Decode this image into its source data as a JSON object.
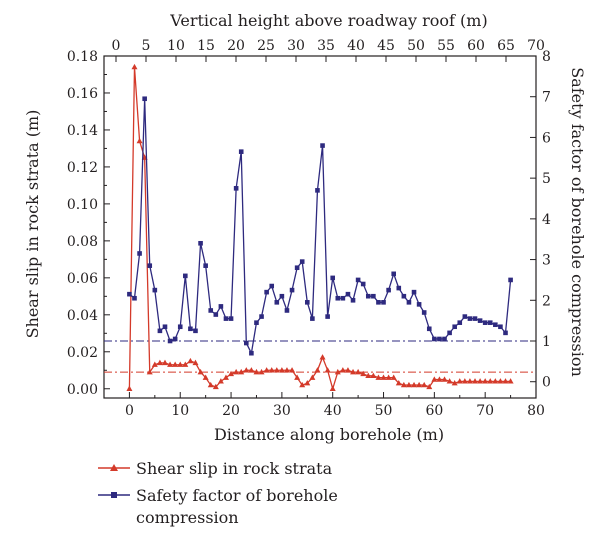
{
  "chart_data": {
    "type": "line",
    "xlabel": "Distance along borehole (m)",
    "x2label": "Vertical height above roadway roof (m)",
    "ylabel": "Shear slip in rock strata (m)",
    "y2label": "Safety factor of borehole compression",
    "xlim": [
      -5,
      80
    ],
    "x2lim": [
      -2,
      70
    ],
    "ylim": [
      -0.005,
      0.18
    ],
    "y2lim": [
      -0.4,
      8
    ],
    "xticks": [
      0,
      10,
      20,
      30,
      40,
      50,
      60,
      70,
      80
    ],
    "x2ticks": [
      0,
      5,
      10,
      15,
      20,
      25,
      30,
      35,
      40,
      45,
      50,
      55,
      60,
      65,
      70
    ],
    "yticks": [
      0.0,
      0.02,
      0.04,
      0.06,
      0.08,
      0.1,
      0.12,
      0.14,
      0.16,
      0.18
    ],
    "y2ticks": [
      0,
      1,
      2,
      3,
      4,
      5,
      6,
      7,
      8
    ],
    "grid": false,
    "legend_position": "bottom-left",
    "reference_lines": [
      {
        "axis": "y2",
        "value": 1.0,
        "color": "#2e2a7f",
        "style": "dash-dot"
      },
      {
        "axis": "y",
        "value": 0.009,
        "color": "#d43a2a",
        "style": "dash-dot"
      }
    ],
    "series": [
      {
        "name": "Shear slip in rock strata",
        "axis": "y",
        "color": "#d43a2a",
        "marker": "triangle",
        "x": [
          0,
          1,
          2,
          3,
          4,
          5,
          6,
          7,
          8,
          9,
          10,
          11,
          12,
          13,
          14,
          15,
          16,
          17,
          18,
          19,
          20,
          21,
          22,
          23,
          24,
          25,
          26,
          27,
          28,
          29,
          30,
          31,
          32,
          33,
          34,
          35,
          36,
          37,
          38,
          39,
          40,
          41,
          42,
          43,
          44,
          45,
          46,
          47,
          48,
          49,
          50,
          51,
          52,
          53,
          54,
          55,
          56,
          57,
          58,
          59,
          60,
          61,
          62,
          63,
          64,
          65,
          66,
          67,
          68,
          69,
          70,
          71,
          72,
          73,
          74,
          75
        ],
        "values": [
          0.0,
          0.174,
          0.134,
          0.125,
          0.009,
          0.013,
          0.014,
          0.014,
          0.013,
          0.013,
          0.013,
          0.013,
          0.015,
          0.014,
          0.009,
          0.006,
          0.002,
          0.001,
          0.004,
          0.006,
          0.008,
          0.009,
          0.009,
          0.01,
          0.01,
          0.009,
          0.009,
          0.01,
          0.01,
          0.01,
          0.01,
          0.01,
          0.01,
          0.006,
          0.002,
          0.003,
          0.006,
          0.01,
          0.017,
          0.01,
          0.0,
          0.009,
          0.01,
          0.01,
          0.009,
          0.009,
          0.008,
          0.007,
          0.007,
          0.006,
          0.006,
          0.006,
          0.006,
          0.003,
          0.002,
          0.002,
          0.002,
          0.002,
          0.002,
          0.001,
          0.005,
          0.005,
          0.005,
          0.004,
          0.003,
          0.004,
          0.004,
          0.004,
          0.004,
          0.004,
          0.004,
          0.004,
          0.004,
          0.004,
          0.004,
          0.004
        ]
      },
      {
        "name": "Safety factor of borehole compression",
        "axis": "y2",
        "color": "#2e2a7f",
        "marker": "square",
        "x": [
          0,
          1,
          2,
          3,
          4,
          5,
          6,
          7,
          8,
          9,
          10,
          11,
          12,
          13,
          14,
          15,
          16,
          17,
          18,
          19,
          20,
          21,
          22,
          23,
          24,
          25,
          26,
          27,
          28,
          29,
          30,
          31,
          32,
          33,
          34,
          35,
          36,
          37,
          38,
          39,
          40,
          41,
          42,
          43,
          44,
          45,
          46,
          47,
          48,
          49,
          50,
          51,
          52,
          53,
          54,
          55,
          56,
          57,
          58,
          59,
          60,
          61,
          62,
          63,
          64,
          65,
          66,
          67,
          68,
          69,
          70,
          71,
          72,
          73,
          74,
          75
        ],
        "values": [
          2.15,
          2.05,
          3.15,
          6.95,
          2.85,
          2.25,
          1.25,
          1.35,
          1.0,
          1.05,
          1.35,
          2.6,
          1.3,
          1.25,
          3.4,
          2.85,
          1.75,
          1.65,
          1.85,
          1.55,
          1.55,
          4.75,
          5.65,
          0.95,
          0.7,
          1.45,
          1.6,
          2.2,
          2.35,
          1.95,
          2.1,
          1.75,
          2.25,
          2.8,
          2.95,
          1.95,
          1.55,
          4.7,
          5.8,
          1.6,
          2.55,
          2.05,
          2.05,
          2.15,
          2.0,
          2.5,
          2.4,
          2.1,
          2.1,
          1.95,
          1.95,
          2.25,
          2.65,
          2.3,
          2.1,
          1.95,
          2.2,
          1.9,
          1.7,
          1.3,
          1.05,
          1.05,
          1.05,
          1.2,
          1.35,
          1.45,
          1.6,
          1.55,
          1.55,
          1.5,
          1.45,
          1.45,
          1.4,
          1.35,
          1.2,
          2.5
        ]
      }
    ]
  }
}
